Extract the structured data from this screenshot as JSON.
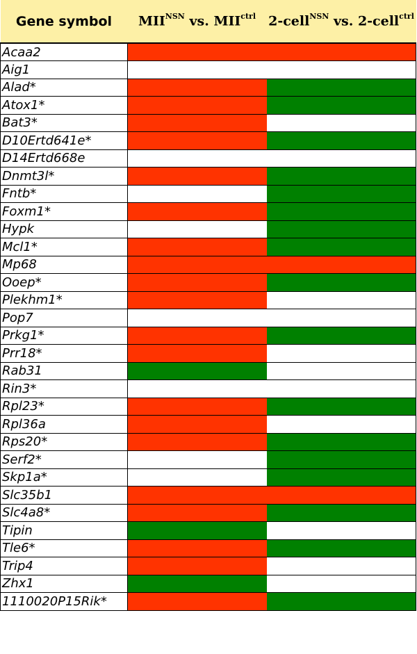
{
  "colors": {
    "up": "#ff3300",
    "down": "#008000",
    "none": "#ffffff",
    "header_bg": "#fdf0a6"
  },
  "header": {
    "gene": "Gene symbol",
    "mii_a": "MII",
    "mii_a_sup": "NSN",
    "mii_mid": " vs. MII",
    "mii_b_sup": "ctrl",
    "two_a": "2-cell",
    "two_a_sup": "NSN",
    "two_mid": " vs. 2-cell",
    "two_b_sup": "ctrl"
  },
  "rows": [
    {
      "gene": "Acaa2",
      "mii": "up",
      "two": "up"
    },
    {
      "gene": "Aig1",
      "mii": "none",
      "two": "none"
    },
    {
      "gene": "Alad*",
      "mii": "up",
      "two": "down"
    },
    {
      "gene": "Atox1*",
      "mii": "up",
      "two": "down"
    },
    {
      "gene": "Bat3*",
      "mii": "up",
      "two": "none"
    },
    {
      "gene": "D10Ertd641e*",
      "mii": "up",
      "two": "down"
    },
    {
      "gene": "D14Ertd668e",
      "mii": "none",
      "two": "none"
    },
    {
      "gene": "Dnmt3l*",
      "mii": "up",
      "two": "down"
    },
    {
      "gene": "Fntb*",
      "mii": "none",
      "two": "down"
    },
    {
      "gene": "Foxm1*",
      "mii": "up",
      "two": "down"
    },
    {
      "gene": "Hypk",
      "mii": "none",
      "two": "down"
    },
    {
      "gene": "Mcl1*",
      "mii": "up",
      "two": "down"
    },
    {
      "gene": "Mp68",
      "mii": "up",
      "two": "up"
    },
    {
      "gene": "Ooep*",
      "mii": "up",
      "two": "down"
    },
    {
      "gene": "Plekhm1*",
      "mii": "up",
      "two": "none"
    },
    {
      "gene": "Pop7",
      "mii": "none",
      "two": "none"
    },
    {
      "gene": "Prkg1*",
      "mii": "up",
      "two": "down"
    },
    {
      "gene": "Prr18*",
      "mii": "up",
      "two": "none"
    },
    {
      "gene": "Rab31",
      "mii": "down",
      "two": "none"
    },
    {
      "gene": "Rin3*",
      "mii": "none",
      "two": "none"
    },
    {
      "gene": "Rpl23*",
      "mii": "up",
      "two": "down"
    },
    {
      "gene": "Rpl36a",
      "mii": "up",
      "two": "none"
    },
    {
      "gene": "Rps20*",
      "mii": "up",
      "two": "down"
    },
    {
      "gene": "Serf2*",
      "mii": "none",
      "two": "down"
    },
    {
      "gene": "Skp1a*",
      "mii": "none",
      "two": "down"
    },
    {
      "gene": "Slc35b1",
      "mii": "up",
      "two": "up"
    },
    {
      "gene": "Slc4a8*",
      "mii": "up",
      "two": "down"
    },
    {
      "gene": "Tipin",
      "mii": "down",
      "two": "none"
    },
    {
      "gene": "Tle6*",
      "mii": "up",
      "two": "down"
    },
    {
      "gene": "Trip4",
      "mii": "up",
      "two": "none"
    },
    {
      "gene": "Zhx1",
      "mii": "down",
      "two": "none"
    },
    {
      "gene": "1110020P15Rik*",
      "mii": "up",
      "two": "down"
    }
  ]
}
